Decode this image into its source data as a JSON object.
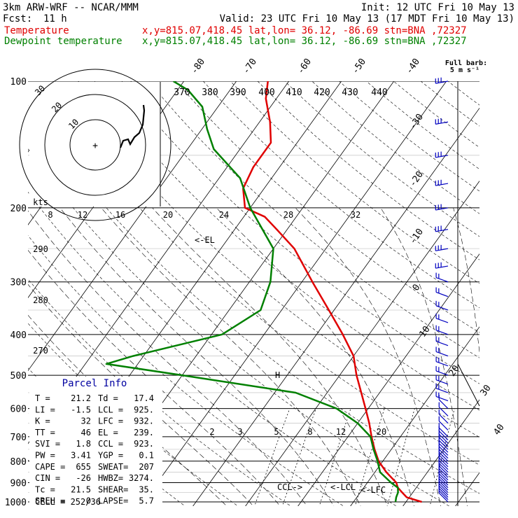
{
  "header": {
    "line1_left": "3km ARW-WRF -- NCAR/MMM",
    "line1_right": "Init: 12 UTC Fri 10 May 13",
    "fcst_label": "Fcst:",
    "fcst_value": "11 h",
    "valid": "Valid: 23 UTC Fri 10 May 13 (17 MDT Fri 10 May 13)",
    "temp_legend": "Temperature",
    "dew_legend": "Dewpoint temperature",
    "location": "x,y=815.07,418.45   lat,lon= 36.12, -86.69   stn=BNA ,72327"
  },
  "barb_legend": {
    "title": "Full barb:",
    "value": "5 m s⁻¹"
  },
  "hodograph": {
    "unit_label": "kts",
    "ring_labels": [
      "10",
      "20",
      "30"
    ]
  },
  "parcel_info": {
    "title": "Parcel Info",
    "rows": [
      [
        "T  =",
        "21.2",
        "Td =",
        "17.4"
      ],
      [
        "LI =",
        "-1.5",
        "LCL =",
        "925."
      ],
      [
        "K  =",
        "32",
        "LFC =",
        "932."
      ],
      [
        "TT =",
        "46",
        "EL =",
        "239."
      ],
      [
        "SVI =",
        "1.8",
        "CCL =",
        "923."
      ],
      [
        "PW =",
        "3.41",
        "YGP =",
        "0.1"
      ],
      [
        "CAPE =",
        "655",
        "SWEAT=",
        "207"
      ],
      [
        "CIN =",
        "-26",
        "HWBZ=",
        "3274."
      ],
      [
        "Tc =",
        "21.5",
        "SHEAR=",
        "35."
      ],
      [
        "SREH =",
        "0",
        "LAPSE=",
        "5.7"
      ]
    ],
    "cell": "CELL = 252/36"
  },
  "chart_labels": {
    "el": "<-EL",
    "ccl": "CCL->",
    "lcl": "<-LCL",
    "lfc": "<-LFC",
    "h_mark": "H"
  },
  "chart_data": {
    "type": "line",
    "subtype": "skew-T log-p sounding",
    "pressure_levels": [
      100,
      200,
      300,
      400,
      500,
      600,
      700,
      800,
      900,
      1000
    ],
    "isotherm_labels": [
      -80,
      -70,
      -60,
      -50,
      -40,
      -30,
      -20,
      -10,
      0,
      10,
      20,
      30,
      40
    ],
    "theta_labels_top": [
      370,
      380,
      390,
      400,
      410,
      420,
      430,
      440
    ],
    "theta_labels_side": [
      290,
      280,
      270
    ],
    "mixing_ratio_labels": [
      2,
      3,
      5,
      8,
      12,
      20
    ],
    "temp_scale_labels": [
      8,
      12,
      16,
      20,
      24,
      28,
      32
    ],
    "series": [
      {
        "name": "Temperature",
        "color": "#e00000",
        "points": [
          [
            1000,
            23
          ],
          [
            975,
            19.5
          ],
          [
            950,
            18
          ],
          [
            925,
            16.5
          ],
          [
            900,
            15.5
          ],
          [
            850,
            12.2
          ],
          [
            800,
            9.2
          ],
          [
            750,
            6.8
          ],
          [
            700,
            4.5
          ],
          [
            650,
            2.2
          ],
          [
            600,
            -0.5
          ],
          [
            550,
            -3.5
          ],
          [
            500,
            -6.8
          ],
          [
            450,
            -10
          ],
          [
            400,
            -15
          ],
          [
            350,
            -21
          ],
          [
            300,
            -28
          ],
          [
            250,
            -36
          ],
          [
            225,
            -42
          ],
          [
            210,
            -46
          ],
          [
            200,
            -51
          ],
          [
            180,
            -54
          ],
          [
            160,
            -55
          ],
          [
            140,
            -55
          ],
          [
            125,
            -58
          ],
          [
            110,
            -62
          ],
          [
            100,
            -64
          ]
        ]
      },
      {
        "name": "Dewpoint temperature",
        "color": "#008000",
        "points": [
          [
            1000,
            18
          ],
          [
            975,
            17.5
          ],
          [
            950,
            17.2
          ],
          [
            925,
            16.5
          ],
          [
            900,
            14.5
          ],
          [
            850,
            11
          ],
          [
            800,
            9
          ],
          [
            750,
            6.6
          ],
          [
            700,
            4.3
          ],
          [
            650,
            0
          ],
          [
            600,
            -6
          ],
          [
            550,
            -16
          ],
          [
            500,
            -40
          ],
          [
            470,
            -56
          ],
          [
            450,
            -52
          ],
          [
            400,
            -38
          ],
          [
            350,
            -34
          ],
          [
            300,
            -36
          ],
          [
            250,
            -40
          ],
          [
            200,
            -50
          ],
          [
            170,
            -56
          ],
          [
            145,
            -65
          ],
          [
            130,
            -69
          ],
          [
            115,
            -73
          ],
          [
            105,
            -78
          ],
          [
            100,
            -82
          ]
        ]
      }
    ]
  }
}
